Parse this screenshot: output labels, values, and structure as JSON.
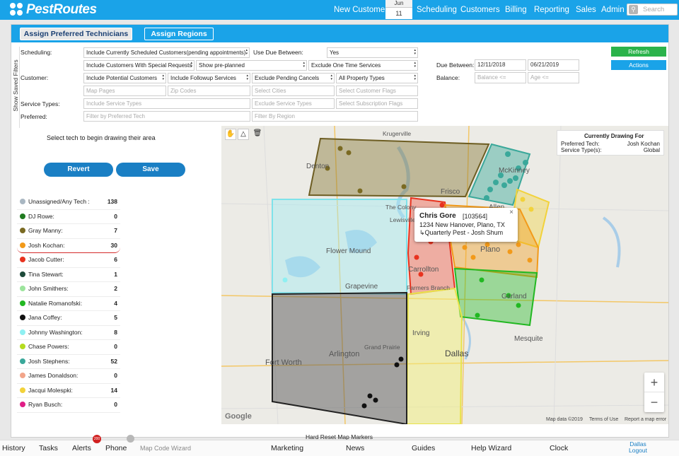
{
  "app": {
    "name": "PestRoutes"
  },
  "nav": {
    "new_customer": "New Customer",
    "date_month": "Jun",
    "date_day": "11",
    "items": [
      "Scheduling",
      "Customers",
      "Billing",
      "Reporting",
      "Sales",
      "Admin"
    ],
    "search_placeholder": "Search"
  },
  "panel": {
    "tab_assign_techs": "Assign Preferred Technicians",
    "tab_assign_regions": "Assign Regions",
    "show_saved_filters": "Show Saved Filters"
  },
  "filters": {
    "scheduling_label": "Scheduling:",
    "customer_label": "Customer:",
    "service_types_label": "Service Types:",
    "preferred_label": "Preferred:",
    "use_due_between_label": "Use Due Between:",
    "due_between_label": "Due Between:",
    "balance_label": "Balance:",
    "sched_select_1": "Include Currently Scheduled Customers(pending appointments)",
    "sched_select_2": "Include Customers With Special Requests",
    "sched_select_3": "Show pre-planned",
    "sched_select_4": "Exclude One Time Services",
    "use_due_value": "Yes",
    "due_from": "12/11/2018",
    "due_to": "06/21/2019",
    "balance_placeholder": "Balance <=",
    "age_placeholder": "Age <=",
    "cust_select_1": "Include Potential Customers",
    "cust_select_2": "Include Followup Services",
    "cust_select_3": "Exclude Pending Cancels",
    "cust_select_4": "All Property Types",
    "map_pages_placeholder": "Map Pages",
    "zip_codes_placeholder": "Zip Codes",
    "select_cities_placeholder": "Select Cities",
    "select_flags_placeholder": "Select Customer Flags",
    "include_service_types_placeholder": "Include Service Types",
    "exclude_service_types_placeholder": "Exclude Service Types",
    "select_subscription_flags_placeholder": "Select Subscription Flags",
    "filter_preferred_placeholder": "Filter by Preferred Tech",
    "filter_region_placeholder": "Filter By Region",
    "refresh_label": "Refresh",
    "actions_label": "Actions"
  },
  "left": {
    "instruction": "Select tech to begin drawing their area",
    "revert_label": "Revert",
    "save_label": "Save",
    "techs": [
      {
        "name": "Unassigned/Any Tech :",
        "count": "138",
        "color": "#a9b7c2"
      },
      {
        "name": "DJ Rowe:",
        "count": "0",
        "color": "#1f7a1f"
      },
      {
        "name": "Gray Manny:",
        "count": "7",
        "color": "#7a6a22"
      },
      {
        "name": "Josh Kochan:",
        "count": "30",
        "color": "#f29a1a"
      },
      {
        "name": "Jacob Cutter:",
        "count": "6",
        "color": "#e8331f"
      },
      {
        "name": "Tina Stewart:",
        "count": "1",
        "color": "#1d4a3a"
      },
      {
        "name": "John Smithers:",
        "count": "2",
        "color": "#9ce49c"
      },
      {
        "name": "Natalie Romanofski:",
        "count": "4",
        "color": "#22b822"
      },
      {
        "name": "Jana Coffey:",
        "count": "5",
        "color": "#111111"
      },
      {
        "name": "Johnny Washington:",
        "count": "8",
        "color": "#8ff0f2"
      },
      {
        "name": "Chase Powers:",
        "count": "0",
        "color": "#b5dc1f"
      },
      {
        "name": "Josh Stephens:",
        "count": "52",
        "color": "#3aa89a"
      },
      {
        "name": "James Donaldson:",
        "count": "0",
        "color": "#f2a58a"
      },
      {
        "name": "Jacqui Molespki:",
        "count": "14",
        "color": "#f2d23a"
      },
      {
        "name": "Ryan Busch:",
        "count": "0",
        "color": "#e01e86"
      }
    ]
  },
  "map": {
    "drawing_title": "Currently Drawing For",
    "preferred_tech_label": "Preferred Tech:",
    "preferred_tech_value": "Josh Kochan",
    "service_types_label": "Service Type(s):",
    "service_types_value": "Global",
    "info_name": "Chris Gore",
    "info_id": "[103564]",
    "info_address": "1234 New Hanover, Plano, TX",
    "info_service": "Quarterly Pest - Josh Shum",
    "attribution": "Map data ©2019",
    "terms": "Terms of Use",
    "report": "Report a map error",
    "google": "Google",
    "zoom_in": "+",
    "zoom_out": "−",
    "cities": [
      {
        "name": "Krugerville"
      },
      {
        "name": "Denton"
      },
      {
        "name": "McKinney"
      },
      {
        "name": "Frisco"
      },
      {
        "name": "The Colony"
      },
      {
        "name": "Allen"
      },
      {
        "name": "Lewisville"
      },
      {
        "name": "Flower Mound"
      },
      {
        "name": "Plano"
      },
      {
        "name": "Carrollton"
      },
      {
        "name": "Farmers Branch"
      },
      {
        "name": "Garland"
      },
      {
        "name": "Grapevine"
      },
      {
        "name": "Irving"
      },
      {
        "name": "Dallas"
      },
      {
        "name": "Mesquite"
      },
      {
        "name": "Arlington"
      },
      {
        "name": "Grand Prairie"
      },
      {
        "name": "Fort Worth"
      }
    ]
  },
  "below_map": "Hard Reset Map Markers",
  "bottom": {
    "history": "History",
    "tasks": "Tasks",
    "alerts": "Alerts",
    "alerts_badge": "200",
    "phone": "Phone",
    "map_code_wizard": "Map Code Wizard",
    "marketing": "Marketing",
    "news": "News",
    "guides": "Guides",
    "help_wizard": "Help Wizard",
    "clock": "Clock",
    "user_city": "Dallas",
    "logout": "Logout"
  }
}
